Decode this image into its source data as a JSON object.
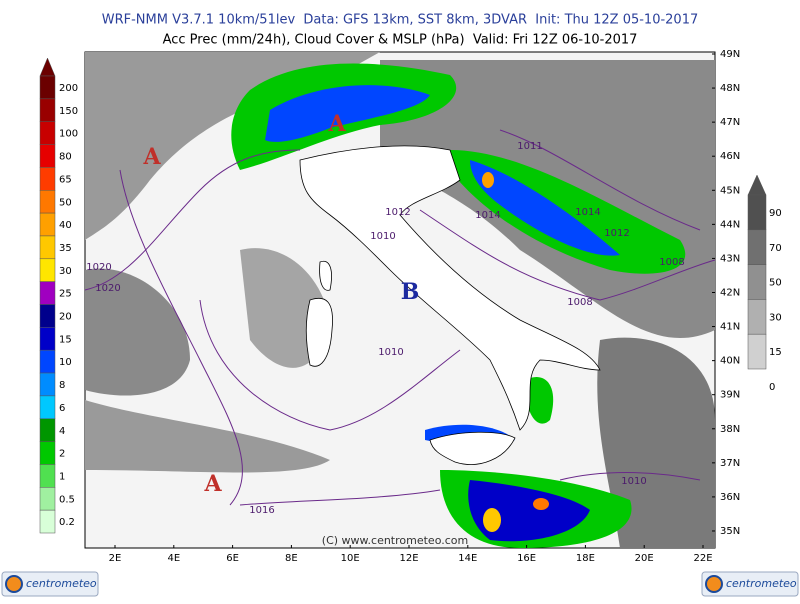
{
  "header": {
    "line1": "WRF-NMM V3.7.1 10km/51lev  Data: GFS 13km, SST 8km, 3DVAR  Init: Thu 12Z 05-10-2017",
    "line2": "Acc Prec (mm/24h), Cloud Cover & MSLP (hPa)  Valid: Fri 12Z 06-10-2017"
  },
  "lat_ticks": [
    {
      "value": 49,
      "label": "49N"
    },
    {
      "value": 48,
      "label": "48N"
    },
    {
      "value": 47,
      "label": "47N"
    },
    {
      "value": 46,
      "label": "46N"
    },
    {
      "value": 45,
      "label": "45N"
    },
    {
      "value": 44,
      "label": "44N"
    },
    {
      "value": 43,
      "label": "43N"
    },
    {
      "value": 42,
      "label": "42N"
    },
    {
      "value": 41,
      "label": "41N"
    },
    {
      "value": 40,
      "label": "40N"
    },
    {
      "value": 39,
      "label": "39N"
    },
    {
      "value": 38,
      "label": "38N"
    },
    {
      "value": 37,
      "label": "37N"
    },
    {
      "value": 36,
      "label": "36N"
    },
    {
      "value": 35,
      "label": "35N"
    }
  ],
  "lon_ticks": [
    {
      "value": 2,
      "label": "2E"
    },
    {
      "value": 4,
      "label": "4E"
    },
    {
      "value": 6,
      "label": "6E"
    },
    {
      "value": 8,
      "label": "8E"
    },
    {
      "value": 10,
      "label": "10E"
    },
    {
      "value": 12,
      "label": "12E"
    },
    {
      "value": 14,
      "label": "14E"
    },
    {
      "value": 16,
      "label": "16E"
    },
    {
      "value": 18,
      "label": "18E"
    },
    {
      "value": 20,
      "label": "20E"
    },
    {
      "value": 22,
      "label": "22E"
    }
  ],
  "precip_legend": {
    "labels": [
      "200",
      "150",
      "100",
      "80",
      "65",
      "50",
      "40",
      "35",
      "30",
      "25",
      "20",
      "15",
      "10",
      "8",
      "6",
      "4",
      "2",
      "1",
      "0.5",
      "0.2"
    ],
    "colors": [
      "#6b0000",
      "#990000",
      "#c80000",
      "#e60000",
      "#ff3c00",
      "#ff7800",
      "#ffa000",
      "#ffc800",
      "#ffe600",
      "#a000c0",
      "#00008c",
      "#0000c8",
      "#0046ff",
      "#008cff",
      "#00c8ff",
      "#009600",
      "#00c800",
      "#50e050",
      "#a0f0a0",
      "#d8ffd8"
    ]
  },
  "cloud_legend": {
    "labels": [
      90,
      70,
      50,
      30,
      15,
      0
    ],
    "colors": [
      "#505050",
      "#707070",
      "#909090",
      "#b0b0b0",
      "#d0d0d0"
    ]
  },
  "isobars": [
    "1020",
    "1020",
    "1010",
    "1010",
    "1012",
    "1014",
    "1012",
    "1014",
    "1008",
    "1008",
    "1016",
    "1010",
    "1011"
  ],
  "centers": [
    "A",
    "A",
    "B",
    "A"
  ],
  "watermark": "(C) www.centrometeo.com",
  "logos": [
    "centrometeo",
    "centrometeo"
  ]
}
